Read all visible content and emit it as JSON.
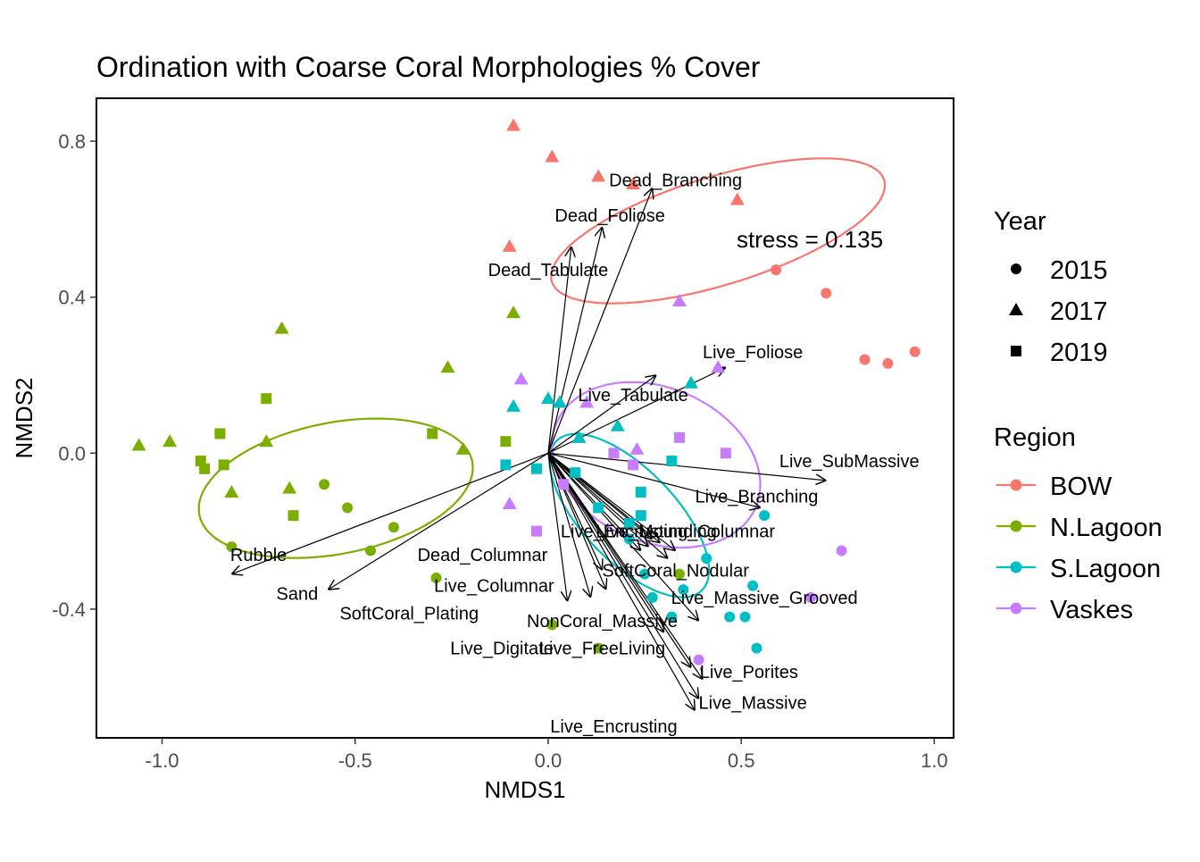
{
  "chart_data": {
    "type": "scatter",
    "title": "Ordination with Coarse Coral Morphologies % Cover",
    "xlabel": "NMDS1",
    "ylabel": "NMDS2",
    "xlim": [
      -1.17,
      1.05
    ],
    "ylim": [
      -0.73,
      0.91
    ],
    "xticks": [
      -1.0,
      -0.5,
      0.0,
      0.5,
      1.0
    ],
    "xtick_labels": [
      "-1.0",
      "-0.5",
      "0.0",
      "0.5",
      "1.0"
    ],
    "yticks": [
      -0.4,
      0.0,
      0.4,
      0.8
    ],
    "ytick_labels": [
      "-0.4",
      "0.0",
      "0.4",
      "0.8"
    ],
    "grid": false,
    "legend_position": "right",
    "annotation": "stress = 0.135",
    "colors": {
      "BOW": "#F8766D",
      "N.Lagoon": "#7CAE00",
      "S.Lagoon": "#00BFC4",
      "Vaskes": "#C77CFF"
    },
    "legends": {
      "year": {
        "title": "Year",
        "entries": [
          {
            "label": "2015",
            "shape": "circle"
          },
          {
            "label": "2017",
            "shape": "triangle"
          },
          {
            "label": "2019",
            "shape": "square"
          }
        ]
      },
      "region": {
        "title": "Region",
        "entries": [
          "BOW",
          "N.Lagoon",
          "S.Lagoon",
          "Vaskes"
        ]
      }
    },
    "points": [
      {
        "region": "BOW",
        "year": "2017",
        "x": -0.09,
        "y": 0.84
      },
      {
        "region": "BOW",
        "year": "2017",
        "x": 0.01,
        "y": 0.76
      },
      {
        "region": "BOW",
        "year": "2017",
        "x": 0.13,
        "y": 0.71
      },
      {
        "region": "BOW",
        "year": "2017",
        "x": 0.22,
        "y": 0.69
      },
      {
        "region": "BOW",
        "year": "2017",
        "x": 0.49,
        "y": 0.65
      },
      {
        "region": "BOW",
        "year": "2017",
        "x": -0.1,
        "y": 0.53
      },
      {
        "region": "BOW",
        "year": "2015",
        "x": 0.59,
        "y": 0.47
      },
      {
        "region": "BOW",
        "year": "2015",
        "x": 0.72,
        "y": 0.41
      },
      {
        "region": "BOW",
        "year": "2015",
        "x": 0.82,
        "y": 0.24
      },
      {
        "region": "BOW",
        "year": "2015",
        "x": 0.88,
        "y": 0.23
      },
      {
        "region": "BOW",
        "year": "2015",
        "x": 0.95,
        "y": 0.26
      },
      {
        "region": "N.Lagoon",
        "year": "2017",
        "x": -1.06,
        "y": 0.02
      },
      {
        "region": "N.Lagoon",
        "year": "2017",
        "x": -0.98,
        "y": 0.03
      },
      {
        "region": "N.Lagoon",
        "year": "2017",
        "x": -0.82,
        "y": -0.1
      },
      {
        "region": "N.Lagoon",
        "year": "2017",
        "x": -0.73,
        "y": 0.03
      },
      {
        "region": "N.Lagoon",
        "year": "2017",
        "x": -0.69,
        "y": 0.32
      },
      {
        "region": "N.Lagoon",
        "year": "2017",
        "x": -0.67,
        "y": -0.09
      },
      {
        "region": "N.Lagoon",
        "year": "2017",
        "x": -0.26,
        "y": 0.22
      },
      {
        "region": "N.Lagoon",
        "year": "2017",
        "x": -0.22,
        "y": 0.01
      },
      {
        "region": "N.Lagoon",
        "year": "2017",
        "x": -0.09,
        "y": 0.36
      },
      {
        "region": "N.Lagoon",
        "year": "2019",
        "x": -0.9,
        "y": -0.02
      },
      {
        "region": "N.Lagoon",
        "year": "2019",
        "x": -0.89,
        "y": -0.04
      },
      {
        "region": "N.Lagoon",
        "year": "2019",
        "x": -0.85,
        "y": 0.05
      },
      {
        "region": "N.Lagoon",
        "year": "2019",
        "x": -0.84,
        "y": -0.03
      },
      {
        "region": "N.Lagoon",
        "year": "2019",
        "x": -0.73,
        "y": 0.14
      },
      {
        "region": "N.Lagoon",
        "year": "2019",
        "x": -0.66,
        "y": -0.16
      },
      {
        "region": "N.Lagoon",
        "year": "2019",
        "x": -0.3,
        "y": 0.05
      },
      {
        "region": "N.Lagoon",
        "year": "2019",
        "x": -0.11,
        "y": 0.03
      },
      {
        "region": "N.Lagoon",
        "year": "2015",
        "x": -0.82,
        "y": -0.24
      },
      {
        "region": "N.Lagoon",
        "year": "2015",
        "x": -0.58,
        "y": -0.08
      },
      {
        "region": "N.Lagoon",
        "year": "2015",
        "x": -0.52,
        "y": -0.14
      },
      {
        "region": "N.Lagoon",
        "year": "2015",
        "x": -0.46,
        "y": -0.25
      },
      {
        "region": "N.Lagoon",
        "year": "2015",
        "x": -0.4,
        "y": -0.19
      },
      {
        "region": "N.Lagoon",
        "year": "2015",
        "x": -0.29,
        "y": -0.32
      },
      {
        "region": "N.Lagoon",
        "year": "2015",
        "x": 0.01,
        "y": -0.44
      },
      {
        "region": "N.Lagoon",
        "year": "2015",
        "x": 0.13,
        "y": -0.5
      },
      {
        "region": "N.Lagoon",
        "year": "2015",
        "x": 0.34,
        "y": -0.31
      },
      {
        "region": "S.Lagoon",
        "year": "2017",
        "x": -0.09,
        "y": 0.12
      },
      {
        "region": "S.Lagoon",
        "year": "2017",
        "x": 0.0,
        "y": 0.14
      },
      {
        "region": "S.Lagoon",
        "year": "2017",
        "x": 0.03,
        "y": 0.13
      },
      {
        "region": "S.Lagoon",
        "year": "2017",
        "x": 0.08,
        "y": 0.04
      },
      {
        "region": "S.Lagoon",
        "year": "2017",
        "x": 0.18,
        "y": 0.07
      },
      {
        "region": "S.Lagoon",
        "year": "2017",
        "x": 0.37,
        "y": 0.18
      },
      {
        "region": "S.Lagoon",
        "year": "2019",
        "x": -0.11,
        "y": -0.03
      },
      {
        "region": "S.Lagoon",
        "year": "2019",
        "x": -0.03,
        "y": -0.04
      },
      {
        "region": "S.Lagoon",
        "year": "2019",
        "x": 0.07,
        "y": -0.05
      },
      {
        "region": "S.Lagoon",
        "year": "2019",
        "x": 0.13,
        "y": -0.14
      },
      {
        "region": "S.Lagoon",
        "year": "2019",
        "x": 0.21,
        "y": -0.18
      },
      {
        "region": "S.Lagoon",
        "year": "2019",
        "x": 0.24,
        "y": -0.1
      },
      {
        "region": "S.Lagoon",
        "year": "2019",
        "x": 0.24,
        "y": -0.16
      },
      {
        "region": "S.Lagoon",
        "year": "2019",
        "x": 0.32,
        "y": -0.02
      },
      {
        "region": "S.Lagoon",
        "year": "2015",
        "x": 0.21,
        "y": -0.22
      },
      {
        "region": "S.Lagoon",
        "year": "2015",
        "x": 0.25,
        "y": -0.31
      },
      {
        "region": "S.Lagoon",
        "year": "2015",
        "x": 0.27,
        "y": -0.37
      },
      {
        "region": "S.Lagoon",
        "year": "2015",
        "x": 0.32,
        "y": -0.42
      },
      {
        "region": "S.Lagoon",
        "year": "2015",
        "x": 0.35,
        "y": -0.35
      },
      {
        "region": "S.Lagoon",
        "year": "2015",
        "x": 0.41,
        "y": -0.27
      },
      {
        "region": "S.Lagoon",
        "year": "2015",
        "x": 0.47,
        "y": -0.42
      },
      {
        "region": "S.Lagoon",
        "year": "2015",
        "x": 0.51,
        "y": -0.42
      },
      {
        "region": "S.Lagoon",
        "year": "2015",
        "x": 0.53,
        "y": -0.34
      },
      {
        "region": "S.Lagoon",
        "year": "2015",
        "x": 0.54,
        "y": -0.5
      },
      {
        "region": "S.Lagoon",
        "year": "2015",
        "x": 0.56,
        "y": -0.16
      },
      {
        "region": "Vaskes",
        "year": "2017",
        "x": -0.07,
        "y": 0.19
      },
      {
        "region": "Vaskes",
        "year": "2017",
        "x": -0.1,
        "y": -0.13
      },
      {
        "region": "Vaskes",
        "year": "2017",
        "x": 0.1,
        "y": 0.13
      },
      {
        "region": "Vaskes",
        "year": "2017",
        "x": 0.23,
        "y": 0.01
      },
      {
        "region": "Vaskes",
        "year": "2017",
        "x": 0.34,
        "y": 0.39
      },
      {
        "region": "Vaskes",
        "year": "2017",
        "x": 0.44,
        "y": 0.22
      },
      {
        "region": "Vaskes",
        "year": "2019",
        "x": -0.03,
        "y": -0.2
      },
      {
        "region": "Vaskes",
        "year": "2019",
        "x": 0.04,
        "y": -0.08
      },
      {
        "region": "Vaskes",
        "year": "2019",
        "x": 0.17,
        "y": 0.0
      },
      {
        "region": "Vaskes",
        "year": "2019",
        "x": 0.22,
        "y": -0.03
      },
      {
        "region": "Vaskes",
        "year": "2019",
        "x": 0.34,
        "y": 0.04
      },
      {
        "region": "Vaskes",
        "year": "2019",
        "x": 0.46,
        "y": 0.0
      },
      {
        "region": "Vaskes",
        "year": "2015",
        "x": 0.39,
        "y": -0.53
      },
      {
        "region": "Vaskes",
        "year": "2015",
        "x": 0.68,
        "y": -0.37
      },
      {
        "region": "Vaskes",
        "year": "2015",
        "x": 0.76,
        "y": -0.25
      }
    ],
    "ellipses": [
      {
        "region": "BOW",
        "cx": 0.44,
        "cy": 0.57,
        "rx": 0.45,
        "ry": 0.14,
        "angle_deg": 17
      },
      {
        "region": "N.Lagoon",
        "cx": -0.55,
        "cy": -0.09,
        "rx": 0.36,
        "ry": 0.17,
        "angle_deg": 11
      },
      {
        "region": "S.Lagoon",
        "cx": 0.21,
        "cy": -0.16,
        "rx": 0.27,
        "ry": 0.12,
        "angle_deg": -46
      },
      {
        "region": "Vaskes",
        "cx": 0.28,
        "cy": -0.03,
        "rx": 0.28,
        "ry": 0.2,
        "angle_deg": -23
      }
    ],
    "vectors": [
      {
        "label": "Dead_Branching",
        "x": 0.27,
        "y": 0.68,
        "lx": 0.33,
        "ly": 0.7
      },
      {
        "label": "Dead_Foliose",
        "x": 0.14,
        "y": 0.58,
        "lx": 0.16,
        "ly": 0.61
      },
      {
        "label": "Dead_Tabulate",
        "x": 0.06,
        "y": 0.53,
        "lx": 0.0,
        "ly": 0.47
      },
      {
        "label": "Live_Foliose",
        "x": 0.46,
        "y": 0.22,
        "lx": 0.53,
        "ly": 0.26
      },
      {
        "label": "Live_Tabulate",
        "x": 0.28,
        "y": 0.2,
        "lx": 0.22,
        "ly": 0.15
      },
      {
        "label": "Live_SubMassive",
        "x": 0.72,
        "y": -0.07,
        "lx": 0.78,
        "ly": -0.02
      },
      {
        "label": "Live_Branching",
        "x": 0.55,
        "y": -0.14,
        "lx": 0.54,
        "ly": -0.11
      },
      {
        "label": "Live_Encrusting_Columnar",
        "x": 0.33,
        "y": -0.25,
        "lx": 0.31,
        "ly": -0.2
      },
      {
        "label": "Live_Mounding",
        "x": 0.29,
        "y": -0.23,
        "lx": 0.28,
        "ly": -0.2
      },
      {
        "label": "SoftCoral_Nodular",
        "x": 0.31,
        "y": -0.27,
        "lx": 0.33,
        "ly": -0.3
      },
      {
        "label": "Dead_Columnar",
        "x": 0.14,
        "y": -0.3,
        "lx": -0.17,
        "ly": -0.26
      },
      {
        "label": "Live_Columnar",
        "x": 0.15,
        "y": -0.35,
        "lx": -0.14,
        "ly": -0.34
      },
      {
        "label": "Live_Massive_Grooved",
        "x": 0.39,
        "y": -0.43,
        "lx": 0.56,
        "ly": -0.37
      },
      {
        "label": "SoftCoral_Plating",
        "x": 0.11,
        "y": -0.37,
        "lx": -0.36,
        "ly": -0.41
      },
      {
        "label": "NonCoral_Massive",
        "x": 0.3,
        "y": -0.46,
        "lx": 0.14,
        "ly": -0.43
      },
      {
        "label": "Live_Digitate",
        "x": 0.05,
        "y": -0.38,
        "lx": -0.12,
        "ly": -0.5
      },
      {
        "label": "Live_FreeLiving",
        "x": 0.37,
        "y": -0.55,
        "lx": 0.14,
        "ly": -0.5
      },
      {
        "label": "Live_Porites",
        "x": 0.4,
        "y": -0.58,
        "lx": 0.52,
        "ly": -0.56
      },
      {
        "label": "Live_Massive",
        "x": 0.39,
        "y": -0.63,
        "lx": 0.53,
        "ly": -0.64
      },
      {
        "label": "Live_Encrusting",
        "x": 0.38,
        "y": -0.66,
        "lx": 0.17,
        "ly": -0.7
      },
      {
        "label": "Rubble",
        "x": -0.82,
        "y": -0.31,
        "lx": -0.75,
        "ly": -0.26
      },
      {
        "label": "Sand",
        "x": -0.57,
        "y": -0.35,
        "lx": -0.65,
        "ly": -0.36
      },
      {
        "label": "",
        "x": 0.26,
        "y": -0.24
      },
      {
        "label": "",
        "x": 0.27,
        "y": -0.22
      },
      {
        "label": "",
        "x": 0.24,
        "y": -0.25
      }
    ]
  }
}
